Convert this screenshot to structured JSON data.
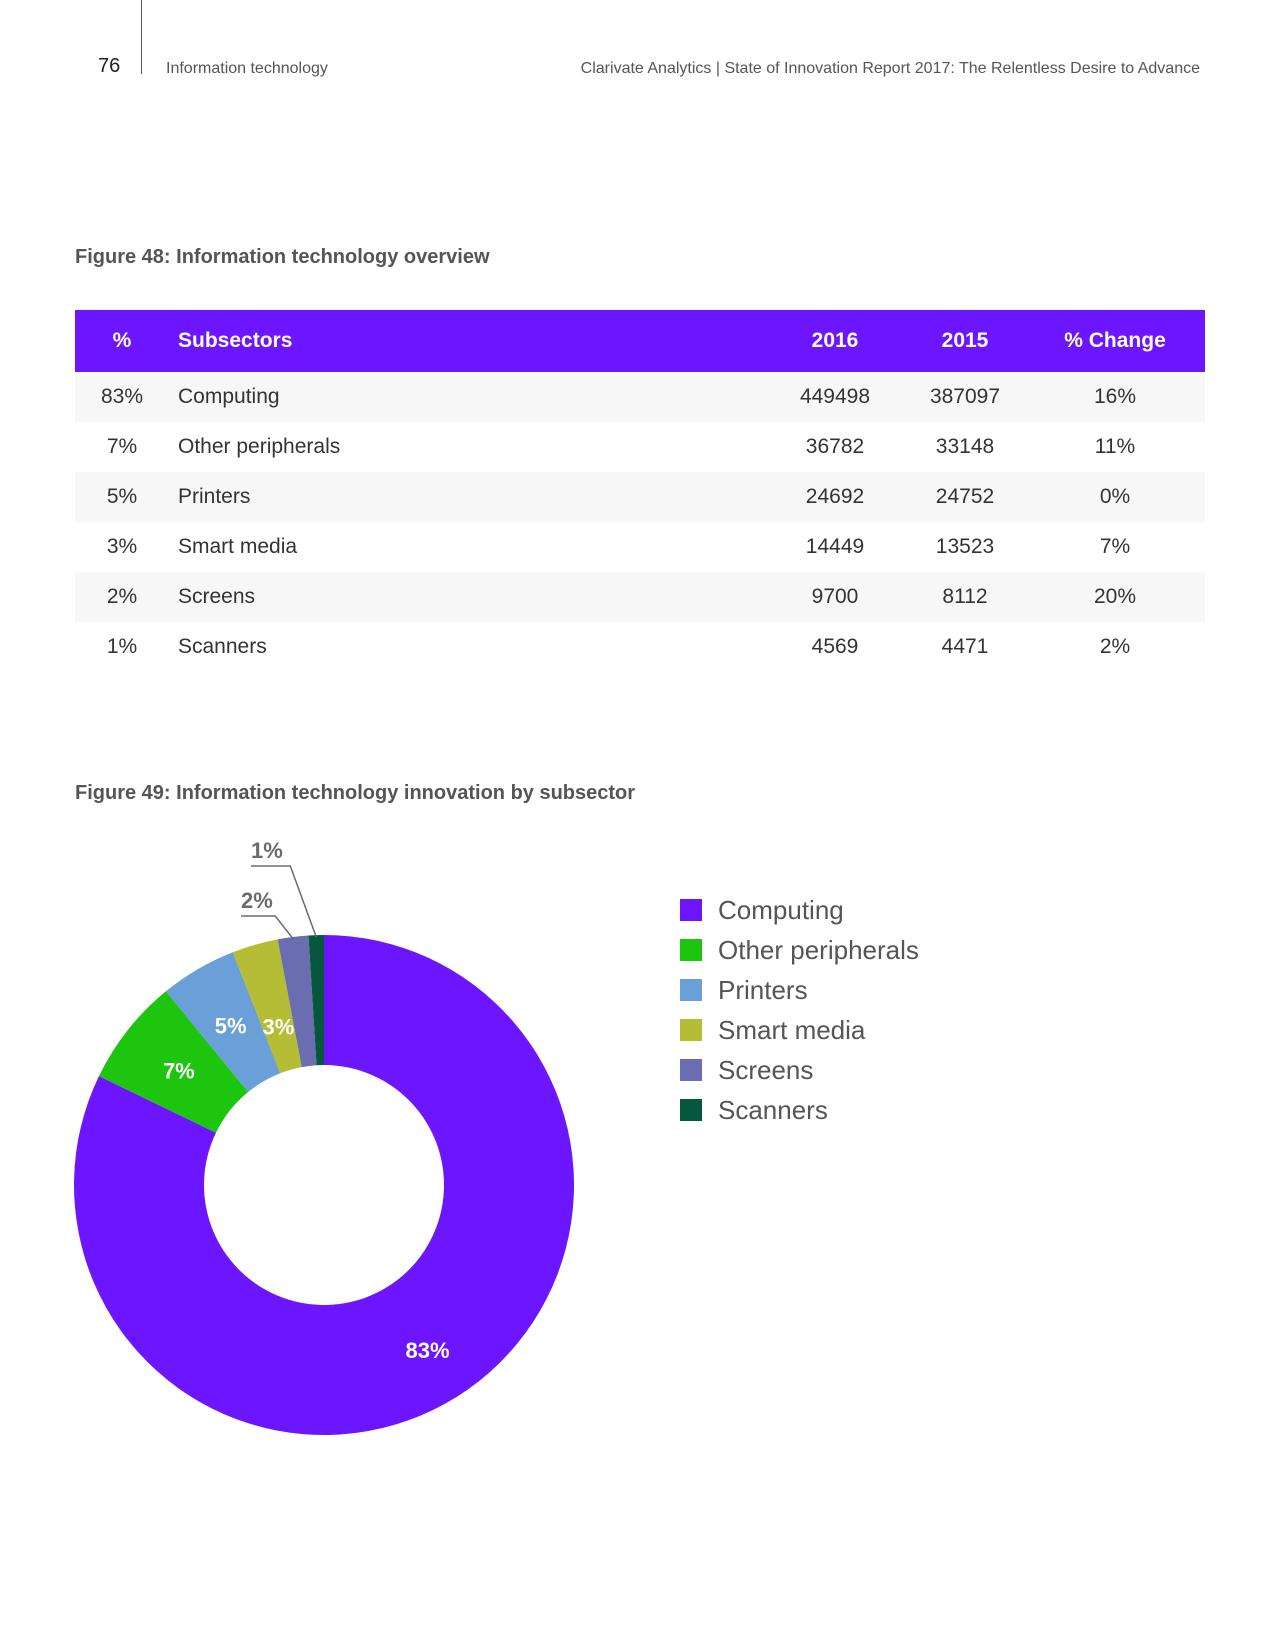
{
  "header": {
    "page_number": "76",
    "section": "Information technology",
    "report_title": "Clarivate Analytics | State of Innovation Report 2017: The Relentless Desire to Advance"
  },
  "figure48": {
    "title": "Figure 48: Information technology overview",
    "columns": [
      "%",
      "Subsectors",
      "2016",
      "2015",
      "% Change"
    ],
    "rows": [
      {
        "pct": "83%",
        "name": "Computing",
        "y2016": "449498",
        "y2015": "387097",
        "change": "16%"
      },
      {
        "pct": "7%",
        "name": "Other peripherals",
        "y2016": "36782",
        "y2015": "33148",
        "change": "11%"
      },
      {
        "pct": "5%",
        "name": "Printers",
        "y2016": "24692",
        "y2015": "24752",
        "change": "0%"
      },
      {
        "pct": "3%",
        "name": "Smart media",
        "y2016": "14449",
        "y2015": "13523",
        "change": "7%"
      },
      {
        "pct": "2%",
        "name": "Screens",
        "y2016": "9700",
        "y2015": "8112",
        "change": "20%"
      },
      {
        "pct": "1%",
        "name": "Scanners",
        "y2016": "4569",
        "y2015": "4471",
        "change": "2%"
      }
    ],
    "header_color": "#6c16ff"
  },
  "figure49": {
    "title": "Figure 49: Information technology innovation by subsector"
  },
  "chart_data": {
    "type": "pie",
    "title": "Figure 49: Information technology innovation by subsector",
    "donut": true,
    "categories": [
      "Computing",
      "Other peripherals",
      "Printers",
      "Smart media",
      "Screens",
      "Scanners"
    ],
    "values": [
      83,
      7,
      5,
      3,
      2,
      1
    ],
    "labels": [
      "83%",
      "7%",
      "5%",
      "3%",
      "2%",
      "1%"
    ],
    "colors": [
      "#6c16ff",
      "#1ec50f",
      "#6a9fd8",
      "#b5bd34",
      "#6a6db0",
      "#07573f"
    ],
    "legend_position": "right"
  }
}
